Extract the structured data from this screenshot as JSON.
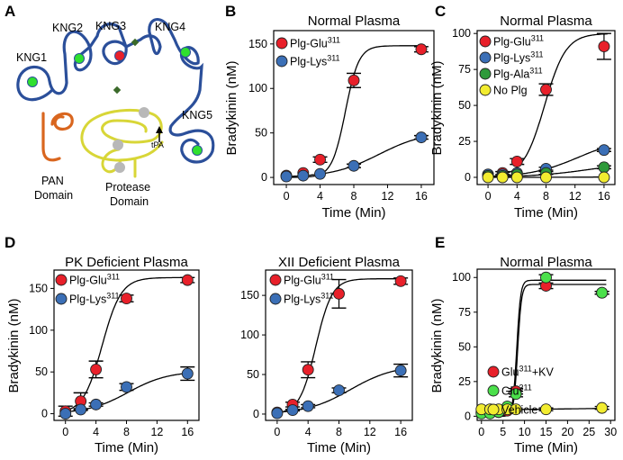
{
  "panel_labels": [
    "A",
    "B",
    "C",
    "D",
    "E"
  ],
  "colors": {
    "glu": "#e8202a",
    "lys": "#3b6fb6",
    "ala": "#2e9a3a",
    "noplg": "#f2ec30",
    "glu_e": "#4be04b",
    "vehicle": "#f2ec30",
    "kv": "#e8202a",
    "kng_chain": "#2b4f9a",
    "pan": "#d9661f",
    "protease": "#d8d637",
    "node_gray": "#b8b8b8",
    "diamond": "#3b6a2a"
  },
  "diagram": {
    "labels": {
      "kng1": "KNG1",
      "kng2": "KNG2",
      "kng3": "KNG3",
      "kng4": "KNG4",
      "kng5": "KNG5",
      "pan": "PAN",
      "pan_sub": "Domain",
      "protease": "Protease",
      "protease_sub": "Domain",
      "tpa": "tPA"
    }
  },
  "chart_data": [
    {
      "panel": "B",
      "type": "scatter",
      "title": "Normal Plasma",
      "xlabel": "Time (Min)",
      "ylabel": "Bradykinin (nM)",
      "xlim": [
        -1.5,
        17.5
      ],
      "ylim": [
        -8,
        165
      ],
      "xticks": [
        0,
        4,
        8,
        12,
        16
      ],
      "yticks": [
        0,
        50,
        100,
        150
      ],
      "series": [
        {
          "name": "Plg-Glu",
          "sup": "311",
          "color_key": "glu",
          "x": [
            0,
            2,
            4,
            8,
            16
          ],
          "y": [
            2,
            5,
            20,
            109,
            144
          ],
          "err": [
            0,
            0,
            3,
            8,
            3
          ],
          "fit": {
            "top": 148,
            "x50": 7.0,
            "k": 1.25
          }
        },
        {
          "name": "Plg-Lys",
          "sup": "311",
          "color_key": "lys",
          "x": [
            0,
            2,
            4,
            8,
            16
          ],
          "y": [
            1,
            2,
            4,
            13,
            45
          ],
          "err": [
            0,
            0,
            0,
            2,
            2
          ],
          "fit": {
            "top": 52,
            "x50": 11.0,
            "k": 0.36
          }
        }
      ]
    },
    {
      "panel": "C",
      "type": "scatter",
      "title": "Normal Plasma",
      "xlabel": "Time (Min)",
      "ylabel": "Bradykinin (nM)",
      "xlim": [
        -1.5,
        17.5
      ],
      "ylim": [
        -5,
        102
      ],
      "xticks": [
        0,
        4,
        8,
        12,
        16
      ],
      "yticks": [
        0,
        25,
        50,
        75,
        100
      ],
      "series": [
        {
          "name": "Plg-Glu",
          "sup": "311",
          "color_key": "glu",
          "x": [
            0,
            2,
            4,
            8,
            16
          ],
          "y": [
            2,
            3,
            11,
            61,
            91
          ],
          "err": [
            0,
            1,
            2,
            4,
            9
          ],
          "fit": {
            "top": 100,
            "x50": 7.8,
            "k": 0.68
          }
        },
        {
          "name": "Plg-Lys",
          "sup": "311",
          "color_key": "lys",
          "x": [
            0,
            2,
            4,
            8,
            16
          ],
          "y": [
            2,
            2,
            3,
            6,
            19
          ],
          "err": [
            0,
            0,
            0,
            1,
            1
          ],
          "fit": {
            "top": 28,
            "x50": 12.5,
            "k": 0.3
          }
        },
        {
          "name": "Plg-Ala",
          "sup": "311",
          "color_key": "ala",
          "x": [
            0,
            2,
            4,
            8,
            16
          ],
          "y": [
            1,
            1,
            2,
            3,
            7
          ],
          "err": [
            0,
            0,
            0,
            1,
            1
          ],
          "fit": {
            "top": 11,
            "x50": 14,
            "k": 0.25
          }
        },
        {
          "name": "No Plg",
          "sup": "",
          "color_key": "noplg",
          "x": [
            0,
            2,
            4,
            8,
            16
          ],
          "y": [
            0,
            0,
            0,
            0,
            0
          ],
          "err": [
            0,
            0,
            0,
            0,
            0
          ],
          "fit": {
            "top": 0.3,
            "x50": 14,
            "k": 0.3
          }
        }
      ]
    },
    {
      "panel": "D",
      "type": "scatter",
      "title": "PK Deficient Plasma",
      "xlabel": "Time (Min)",
      "ylabel": "Bradykinin (nM)",
      "xlim": [
        -1.5,
        17.5
      ],
      "ylim": [
        -8,
        172
      ],
      "xticks": [
        0,
        4,
        8,
        12,
        16
      ],
      "yticks": [
        0,
        50,
        100,
        150
      ],
      "series": [
        {
          "name": "Plg-Glu",
          "sup": "311",
          "color_key": "glu",
          "x": [
            0,
            2,
            4,
            8,
            16
          ],
          "y": [
            3,
            15,
            53,
            138,
            160
          ],
          "err": [
            6,
            10,
            10,
            4,
            3
          ],
          "fit": {
            "top": 163,
            "x50": 4.8,
            "k": 0.8
          }
        },
        {
          "name": "Plg-Lys",
          "sup": "311",
          "color_key": "lys",
          "x": [
            0,
            2,
            4,
            8,
            16
          ],
          "y": [
            0,
            5,
            11,
            32,
            48
          ],
          "err": [
            0,
            1,
            2,
            4,
            8
          ],
          "fit": {
            "top": 51,
            "x50": 8.2,
            "k": 0.38
          }
        }
      ]
    },
    {
      "panel": "D2",
      "type": "scatter",
      "title": "XII Deficient Plasma",
      "xlabel": "Time (Min)",
      "ylabel": "",
      "xlim": [
        -1.5,
        17.5
      ],
      "ylim": [
        -8,
        182
      ],
      "xticks": [
        0,
        4,
        8,
        12,
        16
      ],
      "yticks": [
        0,
        50,
        100,
        150
      ],
      "series": [
        {
          "name": "Plg-Glu",
          "sup": "311",
          "color_key": "glu",
          "x": [
            0,
            2,
            4,
            8,
            16
          ],
          "y": [
            2,
            12,
            56,
            152,
            168
          ],
          "err": [
            0,
            3,
            10,
            18,
            4
          ],
          "fit": {
            "top": 171,
            "x50": 5.0,
            "k": 0.95
          }
        },
        {
          "name": "Plg-Lys",
          "sup": "311",
          "color_key": "lys",
          "x": [
            0,
            2,
            4,
            8,
            16
          ],
          "y": [
            1,
            5,
            10,
            30,
            55
          ],
          "err": [
            0,
            1,
            2,
            3,
            8
          ],
          "fit": {
            "top": 62,
            "x50": 9.5,
            "k": 0.35
          }
        }
      ]
    },
    {
      "panel": "E",
      "type": "scatter",
      "title": "Normal Plasma",
      "xlabel": "Time (Min)",
      "ylabel": "Bradykinin (nM)",
      "xlim": [
        -1,
        31
      ],
      "ylim": [
        -3,
        106
      ],
      "xticks": [
        0,
        5,
        10,
        15,
        20,
        25,
        30
      ],
      "yticks": [
        0,
        25,
        50,
        75,
        100
      ],
      "series": [
        {
          "name": "Glu",
          "sup": "311",
          "suffix": "+KV",
          "color_key": "kv",
          "x": [
            0,
            2,
            4,
            6,
            8,
            15,
            28
          ],
          "y": [
            3,
            3,
            3,
            4,
            18,
            94,
            89
          ],
          "err": [
            0,
            0,
            0,
            0,
            2,
            2,
            1
          ],
          "fit": {
            "top": 95,
            "x50": 8.4,
            "k": 2.2
          }
        },
        {
          "name": "Glu",
          "sup": "311",
          "suffix": "",
          "color_key": "glu_e",
          "x": [
            0,
            2,
            4,
            6,
            8,
            15,
            28
          ],
          "y": [
            2,
            2,
            3,
            7,
            16,
            100,
            89
          ],
          "err": [
            0,
            0,
            0,
            0,
            2,
            2,
            1
          ],
          "fit": {
            "top": 98,
            "x50": 8.2,
            "k": 2.2
          }
        },
        {
          "name": "Vehicle",
          "sup": "",
          "suffix": "",
          "color_key": "vehicle",
          "x": [
            0,
            2,
            4,
            6,
            8,
            15,
            28
          ],
          "y": [
            5,
            5,
            5,
            5,
            5,
            5,
            6
          ],
          "err": [
            0,
            0,
            0,
            0,
            0,
            1,
            1
          ],
          "fit": {
            "top": 6,
            "x50": 0,
            "k": 0.1
          }
        }
      ]
    }
  ]
}
